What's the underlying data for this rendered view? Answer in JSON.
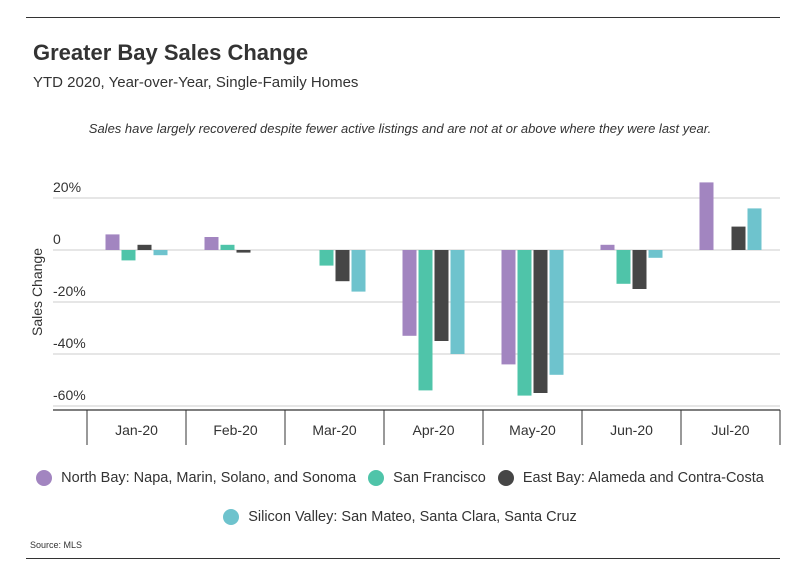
{
  "title": "Greater Bay Sales Change",
  "subtitle": "YTD 2020, Year-over-Year, Single-Family Homes",
  "annotation": "Sales have largely recovered despite fewer active listings and are not at or above where they were last year.",
  "source": "Source: MLS",
  "colors": {
    "north_bay": "#a285c0",
    "san_francisco": "#4fc4a9",
    "east_bay": "#464646",
    "silicon_valley": "#6ec3cd",
    "gridline": "#cccccc",
    "text": "#333333"
  },
  "chart_data": {
    "type": "bar",
    "title": "Greater Bay Sales Change",
    "subtitle": "YTD 2020, Year-over-Year, Single-Family Homes",
    "xlabel": "",
    "ylabel": "Sales Change",
    "ylim": [
      -62,
      27
    ],
    "y_ticks": [
      20,
      0,
      -20,
      -40,
      -60
    ],
    "y_tick_labels": [
      "20%",
      "0",
      "-20%",
      "-40%",
      "-60%"
    ],
    "categories": [
      "Jan-20",
      "Feb-20",
      "Mar-20",
      "Apr-20",
      "May-20",
      "Jun-20",
      "Jul-20"
    ],
    "series": [
      {
        "name": "North Bay: Napa, Marin, Solano, and Sonoma",
        "color": "#a285c0",
        "values": [
          6,
          5,
          0,
          -33,
          -44,
          2,
          26
        ]
      },
      {
        "name": "San Francisco",
        "color": "#4fc4a9",
        "values": [
          -4,
          2,
          -6,
          -54,
          -56,
          -13,
          0
        ]
      },
      {
        "name": "East Bay: Alameda and Contra-Costa",
        "color": "#464646",
        "values": [
          2,
          -1,
          -12,
          -35,
          -55,
          -15,
          9
        ]
      },
      {
        "name": "Silicon Valley: San Mateo, Santa Clara, Santa Cruz",
        "color": "#6ec3cd",
        "values": [
          -2,
          0,
          -16,
          -40,
          -48,
          -3,
          16
        ]
      }
    ],
    "grid": true,
    "legend_position": "bottom"
  }
}
